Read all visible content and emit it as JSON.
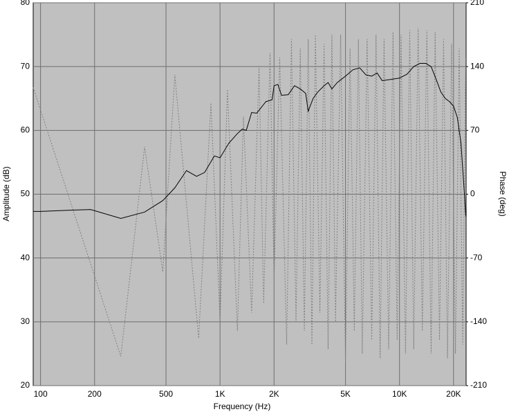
{
  "chart_data": {
    "type": "line",
    "xlabel": "Frequency (Hz)",
    "ylabel": "Amplitude (dB)",
    "y2label": "Phase (deg)",
    "xscale": "log",
    "grid": true,
    "xlim": [
      91,
      23500
    ],
    "ylim": [
      20,
      80
    ],
    "y2lim": [
      -210,
      210
    ],
    "xticks": [
      100,
      200,
      500,
      {
        "value": 1000,
        "label": "1K"
      },
      {
        "value": 2000,
        "label": "2K"
      },
      {
        "value": 5000,
        "label": "5K"
      },
      {
        "value": 10000,
        "label": "10K"
      },
      {
        "value": 20000,
        "label": "20K"
      }
    ],
    "yticks": [
      20,
      30,
      40,
      50,
      60,
      70,
      80
    ],
    "y2ticks": [
      -210,
      -140,
      -70,
      0,
      70,
      140,
      210
    ],
    "series": [
      {
        "color": "#808080",
        "axis": "y2",
        "style": "dotted",
        "x": [
          91,
          280,
          380,
          480,
          560,
          760,
          890,
          1000,
          1100,
          1250,
          1350,
          1500,
          1650,
          1750,
          1900,
          2000,
          2150,
          2350,
          2500,
          2650,
          2800,
          2950,
          3100,
          3250,
          3400,
          3600,
          3800,
          4000,
          4200,
          4400,
          4700,
          5000,
          5300,
          5600,
          5900,
          6200,
          6600,
          7000,
          7400,
          7800,
          8200,
          8700,
          9200,
          9700,
          10200,
          10800,
          11400,
          12000,
          12700,
          13400,
          14200,
          15000,
          15800,
          16700,
          17600,
          18500,
          19500,
          20500,
          21500,
          22500,
          23400
        ],
        "values": [
          117,
          -178,
          52,
          -85,
          131,
          -158,
          100,
          -140,
          115,
          -150,
          85,
          -130,
          140,
          -120,
          155,
          -95,
          150,
          -165,
          170,
          -140,
          160,
          -150,
          170,
          -165,
          175,
          -130,
          165,
          -170,
          175,
          -140,
          175,
          -185,
          160,
          -150,
          170,
          -175,
          170,
          -160,
          175,
          -180,
          170,
          -170,
          178,
          -160,
          175,
          -175,
          180,
          -170,
          182,
          -150,
          180,
          -175,
          178,
          -160,
          170,
          -180,
          165,
          -175,
          160,
          -165,
          150
        ]
      },
      {
        "color": "#000000",
        "style": "solid",
        "x": [
          91,
          100,
          150,
          190,
          280,
          380,
          480,
          560,
          650,
          740,
          820,
          930,
          1000,
          1120,
          1250,
          1330,
          1400,
          1500,
          1600,
          1800,
          1950,
          2000,
          2100,
          2200,
          2400,
          2600,
          2800,
          3000,
          3100,
          3300,
          3500,
          3800,
          4000,
          4200,
          4500,
          5000,
          5500,
          6000,
          6500,
          7000,
          7500,
          8000,
          9000,
          10000,
          11000,
          12000,
          13000,
          14000,
          15000,
          16000,
          17000,
          18000,
          19000,
          20000,
          21000,
          22000,
          23000,
          23400
        ],
        "values": [
          47.3,
          47.3,
          47.5,
          47.6,
          46.2,
          47.2,
          49,
          51,
          53.7,
          52.8,
          53.4,
          56,
          55.7,
          58,
          59.5,
          60.2,
          60,
          62.8,
          62.7,
          64.5,
          64.8,
          67,
          67.2,
          65.5,
          65.6,
          67,
          66.5,
          65.8,
          63,
          65,
          66,
          67,
          67.5,
          66.5,
          67.5,
          68.5,
          69.5,
          69.8,
          68.7,
          68.5,
          69,
          67.8,
          68,
          68.2,
          68.8,
          70,
          70.5,
          70.5,
          70,
          68,
          66,
          65,
          64.5,
          63.8,
          62,
          58,
          50,
          46.5
        ]
      }
    ]
  }
}
